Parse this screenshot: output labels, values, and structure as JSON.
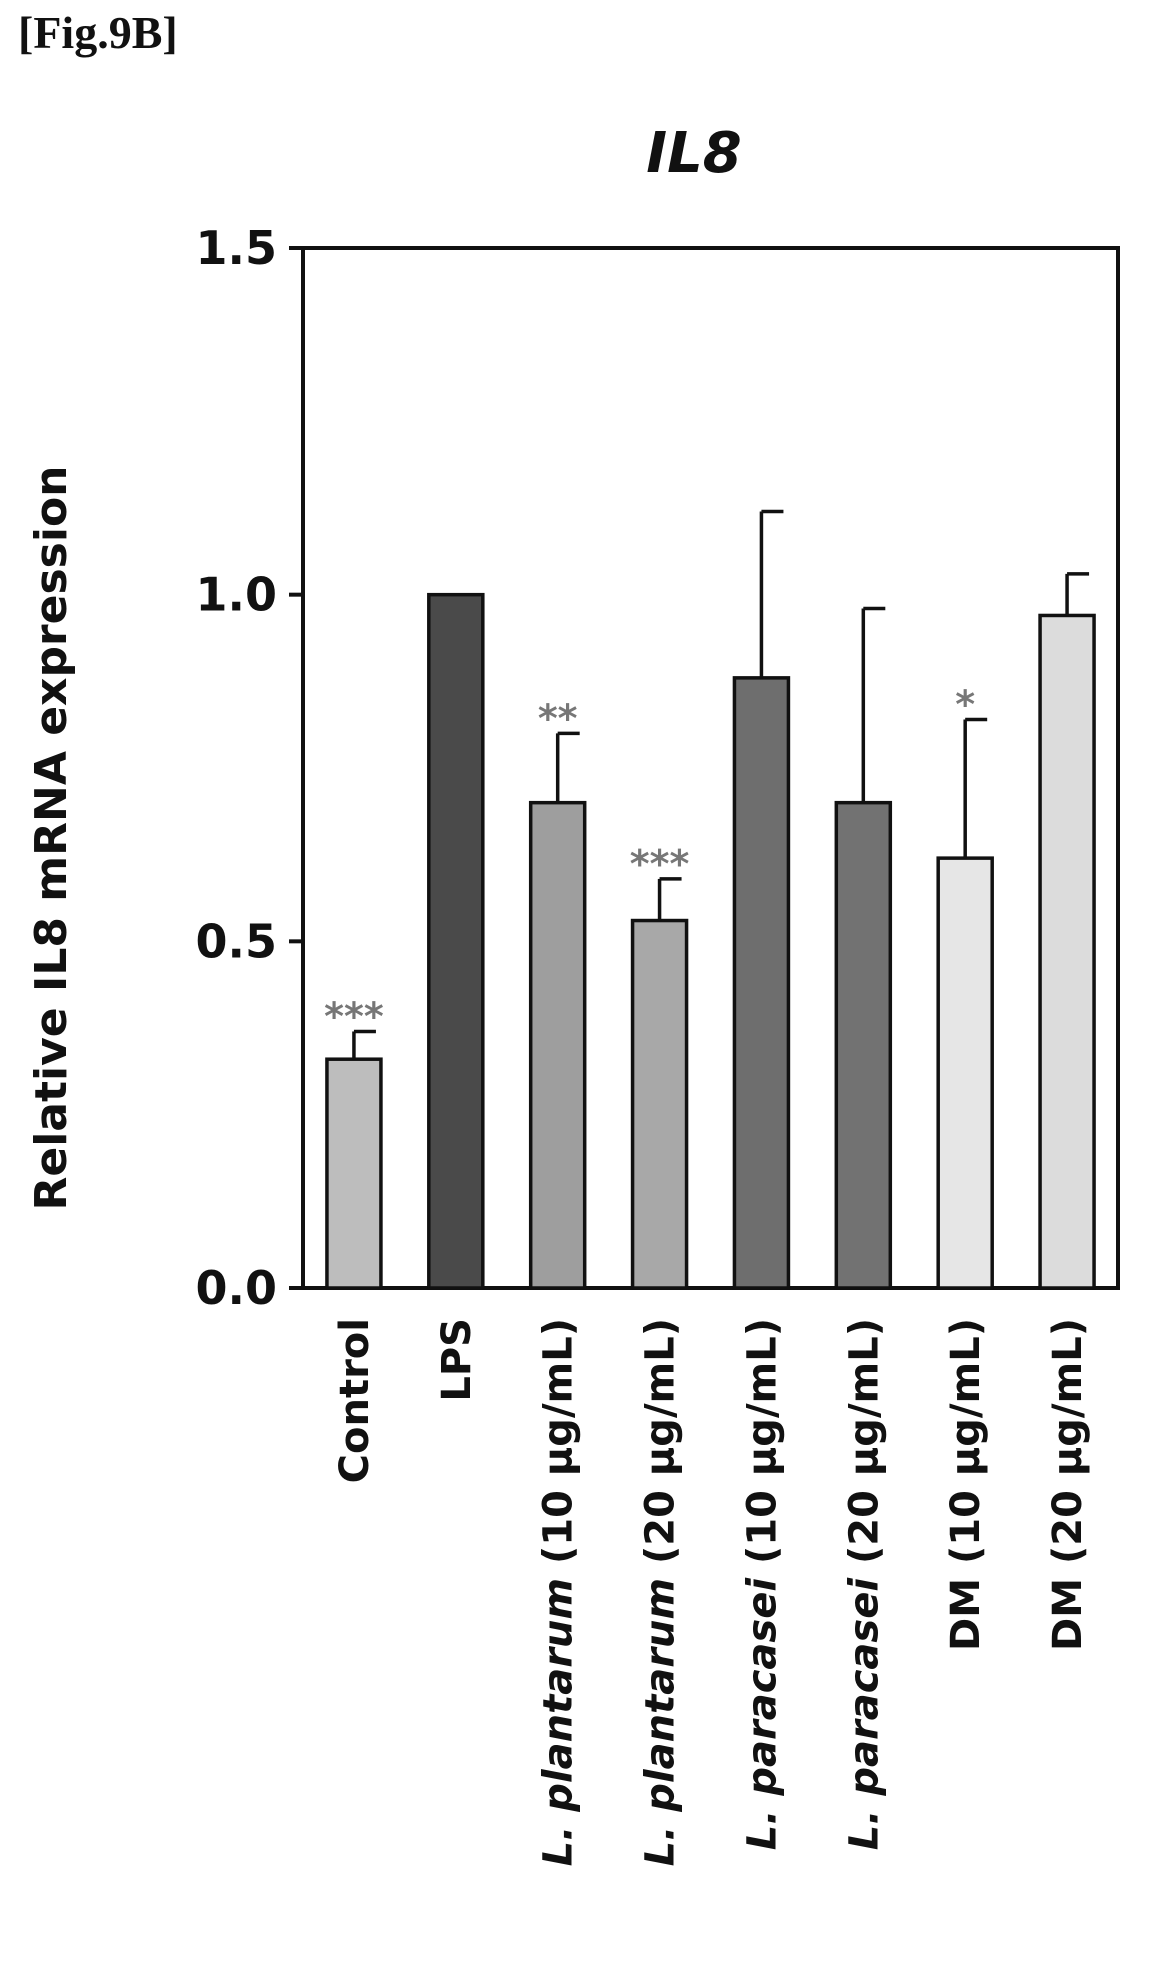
{
  "figure_label": "[Fig.9B]",
  "chart_data": {
    "type": "bar",
    "title": "IL8",
    "ylabel": "Relative IL8 mRNA expression",
    "xlabel": "",
    "ylim": [
      0,
      1.5
    ],
    "yticks": [
      "0.0",
      "0.5",
      "1.0",
      "1.5"
    ],
    "grid": false,
    "categories": [
      {
        "italic": "",
        "plain": "Control"
      },
      {
        "italic": "",
        "plain": "LPS"
      },
      {
        "italic": "L. plantarum",
        "plain": " (10 μg/mL)"
      },
      {
        "italic": "L. plantarum",
        "plain": " (20 μg/mL)"
      },
      {
        "italic": "L. paracasei",
        "plain": " (10 μg/mL)"
      },
      {
        "italic": "L. paracasei",
        "plain": " (20 μg/mL)"
      },
      {
        "italic": "",
        "plain": "DM (10 μg/mL)"
      },
      {
        "italic": "",
        "plain": "DM (20 μg/mL)"
      }
    ],
    "values": [
      0.33,
      1.0,
      0.7,
      0.53,
      0.88,
      0.7,
      0.62,
      0.97
    ],
    "errors": [
      0.04,
      0.0,
      0.1,
      0.06,
      0.24,
      0.28,
      0.2,
      0.06
    ],
    "significance": [
      "***",
      "",
      "**",
      "***",
      "",
      "",
      "*",
      ""
    ],
    "bar_colors": [
      "#bdbdbd",
      "#4a4a4a",
      "#9e9e9e",
      "#a8a8a8",
      "#6e6e6e",
      "#727272",
      "#e6e6e6",
      "#dcdcdc"
    ]
  }
}
